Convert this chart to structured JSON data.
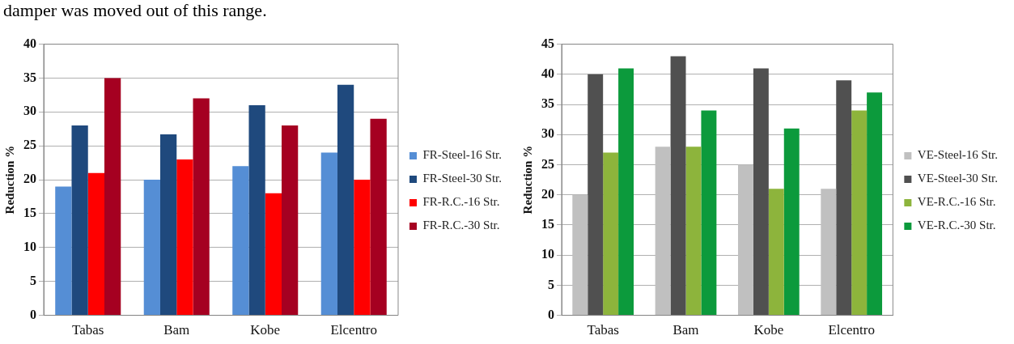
{
  "chart_data": [
    {
      "type": "bar",
      "ylabel": "Reduction %",
      "categories": [
        "Tabas",
        "Bam",
        "Kobe",
        "Elcentro"
      ],
      "annotations": [
        "damper was moved out of this range."
      ],
      "series": [
        {
          "name": "FR-Steel-16 Str.",
          "color": "#558ed5",
          "values": [
            19,
            20,
            22,
            24
          ]
        },
        {
          "name": "FR-Steel-30 Str.",
          "color": "#1f497d",
          "values": [
            28,
            26.7,
            31,
            34
          ]
        },
        {
          "name": "FR-R.C.-16 Str.",
          "color": "#ff0000",
          "values": [
            21,
            23,
            18,
            20
          ]
        },
        {
          "name": "FR-R.C.-30 Str.",
          "color": "#a50021",
          "values": [
            35,
            32,
            28,
            29
          ]
        }
      ],
      "ylim": [
        0,
        40
      ],
      "yticks": [
        0,
        5,
        10,
        15,
        20,
        25,
        30,
        35,
        40
      ],
      "grid": "y",
      "legend": "right"
    },
    {
      "type": "bar",
      "ylabel": "Reduction %",
      "categories": [
        "Tabas",
        "Bam",
        "Kobe",
        "Elcentro"
      ],
      "series": [
        {
          "name": "VE-Steel-16 Str.",
          "color": "#c0c0c0",
          "values": [
            20,
            28,
            25,
            21
          ]
        },
        {
          "name": "VE-Steel-30 Str.",
          "color": "#505050",
          "values": [
            40,
            43,
            41,
            39
          ]
        },
        {
          "name": "VE-R.C.-16 Str.",
          "color": "#8db43c",
          "values": [
            27,
            28,
            21,
            34
          ]
        },
        {
          "name": "VE-R.C.-30 Str.",
          "color": "#0c9a3c",
          "values": [
            41,
            34,
            31,
            37
          ]
        }
      ],
      "ylim": [
        0,
        45
      ],
      "yticks": [
        0,
        5,
        10,
        15,
        20,
        25,
        30,
        35,
        40,
        45
      ],
      "grid": "y",
      "legend": "right"
    }
  ]
}
